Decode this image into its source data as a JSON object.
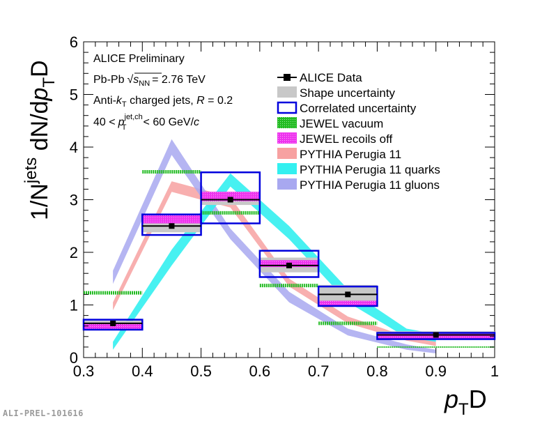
{
  "chart_data": {
    "type": "histogram",
    "xlabel_italic": "p",
    "xlabel_sub": "T",
    "xlabel_tail": "D",
    "ylabel": {
      "pre": "1/N",
      "sup": "jets",
      "mid": " dN/d",
      "ital": "p",
      "sub": "T",
      "tail": "D"
    },
    "xlim": [
      0.3,
      1.0
    ],
    "ylim": [
      0,
      6
    ],
    "x_ticks": [
      "0.3",
      "0.4",
      "0.5",
      "0.6",
      "0.7",
      "0.8",
      "0.9",
      "1"
    ],
    "y_ticks": [
      "0",
      "1",
      "2",
      "3",
      "4",
      "5",
      "6"
    ],
    "annotations": {
      "line1": "ALICE Preliminary",
      "line2_pre": "Pb-Pb",
      "line2_sqrt_s": "s",
      "line2_sub": "NN",
      "line2_post": "= 2.76 TeV",
      "line3_pre": "Anti-",
      "line3_k": "k",
      "line3_ksub": "T",
      "line3_mid": " charged jets, ",
      "line3_R": "R",
      "line3_post": " = 0.2",
      "line4_pre": "40 <",
      "line4_p": "p",
      "line4_sup": "jet,ch",
      "line4_sub": "T",
      "line4_post": "< 60 GeV/",
      "line4_c": "c"
    },
    "legend": [
      {
        "key": "data",
        "label": "ALICE Data"
      },
      {
        "key": "shape",
        "label": "Shape uncertainty"
      },
      {
        "key": "corr",
        "label": "Correlated uncertainty"
      },
      {
        "key": "jewel",
        "label": "JEWEL vacuum"
      },
      {
        "key": "jewel_recoil",
        "label": "JEWEL recoils off"
      },
      {
        "key": "pythia",
        "label": "PYTHIA Perugia 11"
      },
      {
        "key": "pythia_q",
        "label": "PYTHIA Perugia 11 quarks"
      },
      {
        "key": "pythia_g",
        "label": "PYTHIA Perugia 11 gluons"
      }
    ],
    "bins": [
      [
        0.3,
        0.4
      ],
      [
        0.4,
        0.5
      ],
      [
        0.5,
        0.6
      ],
      [
        0.6,
        0.7
      ],
      [
        0.7,
        0.8
      ],
      [
        0.8,
        1.0
      ]
    ],
    "series": {
      "data": {
        "x": [
          0.35,
          0.45,
          0.55,
          0.65,
          0.75,
          0.9
        ],
        "y": [
          0.65,
          2.5,
          3.0,
          1.75,
          1.2,
          0.43
        ]
      },
      "shape_unc": [
        [
          0.58,
          0.7
        ],
        [
          2.38,
          2.65
        ],
        [
          2.9,
          3.15
        ],
        [
          1.62,
          1.9
        ],
        [
          1.05,
          1.38
        ],
        [
          0.38,
          0.5
        ]
      ],
      "corr_unc": [
        [
          0.53,
          0.72
        ],
        [
          2.33,
          2.72
        ],
        [
          2.55,
          3.52
        ],
        [
          1.53,
          2.03
        ],
        [
          0.98,
          1.35
        ],
        [
          0.35,
          0.47
        ]
      ],
      "jewel_vacuum": [
        1.23,
        3.53,
        2.75,
        1.37,
        0.65,
        0.2
      ],
      "jewel_recoils_off": [
        [
          0.53,
          0.64
        ],
        [
          2.55,
          2.73
        ],
        [
          2.97,
          3.15
        ],
        [
          1.72,
          1.85
        ],
        [
          0.98,
          1.08
        ],
        [
          0.36,
          0.45
        ]
      ],
      "pythia_centers": [
        0.35,
        0.45,
        0.55,
        0.65,
        0.75,
        0.85,
        0.9
      ],
      "pythia": {
        "lo": [
          0.9,
          3.15,
          2.85,
          1.35,
          0.65,
          0.32,
          0.22
        ],
        "hi": [
          1.05,
          3.35,
          3.05,
          1.5,
          0.78,
          0.4,
          0.3
        ]
      },
      "pythia_quarks": {
        "lo": [
          0.15,
          1.75,
          3.25,
          2.25,
          1.05,
          0.38,
          0.3
        ],
        "hi": [
          0.3,
          2.05,
          3.5,
          2.5,
          1.3,
          0.55,
          0.45
        ]
      },
      "pythia_gluons": {
        "lo": [
          1.4,
          3.85,
          2.25,
          1.05,
          0.42,
          0.15,
          0.08
        ],
        "hi": [
          1.65,
          4.15,
          2.45,
          1.25,
          0.55,
          0.25,
          0.15
        ]
      }
    },
    "colors": {
      "data": "#000000",
      "shape": "#c8c8c8",
      "corr": "#0000dd",
      "jewel": "#22bb22",
      "jewel_recoil": "#ee33ee",
      "pythia": "#f7a1a1",
      "pythia_q": "#33f0f0",
      "pythia_g": "#a8a8f0"
    }
  },
  "watermark": "ALI-PREL-101616"
}
